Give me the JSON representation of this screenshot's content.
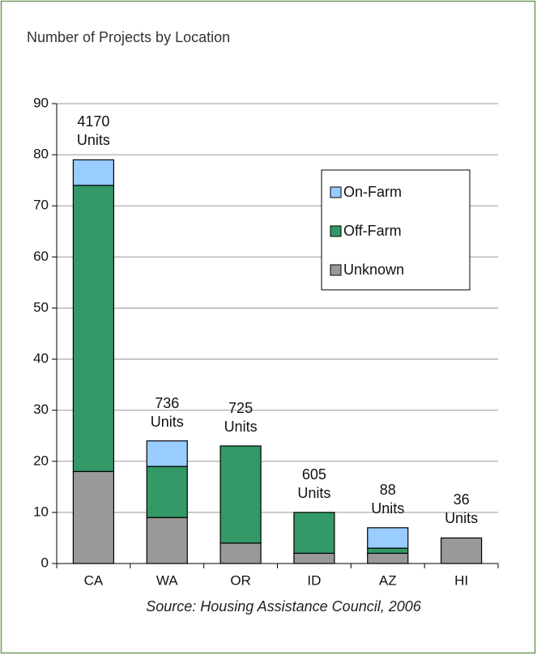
{
  "chart_data": {
    "type": "stacked_bar",
    "title": "Number of Projects by Location",
    "categories": [
      "CA",
      "WA",
      "OR",
      "ID",
      "AZ",
      "HI"
    ],
    "series": [
      {
        "name": "Unknown",
        "color": "#999999",
        "values": [
          18,
          9,
          4,
          2,
          2,
          5
        ]
      },
      {
        "name": "Off-Farm",
        "color": "#339966",
        "values": [
          56,
          10,
          19,
          8,
          1,
          0
        ]
      },
      {
        "name": "On-Farm",
        "color": "#99ccff",
        "values": [
          5,
          5,
          0,
          0,
          4,
          0
        ]
      }
    ],
    "bar_labels": [
      "4170 Units",
      "736 Units",
      "725 Units",
      "605 Units",
      "88 Units",
      "36 Units"
    ],
    "ylim": [
      0,
      90
    ],
    "yticks": [
      0,
      10,
      20,
      30,
      40,
      50,
      60,
      70,
      80,
      90
    ],
    "grid": true,
    "legend": "upper right",
    "source": "Source: Housing Assistance Council, 2006"
  }
}
